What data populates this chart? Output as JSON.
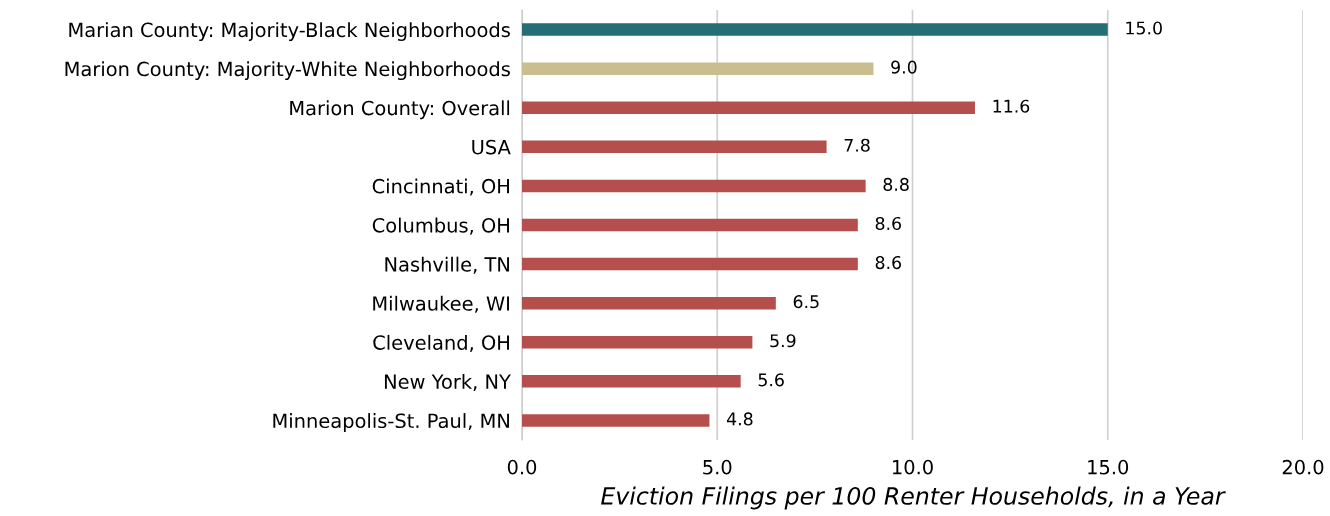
{
  "chart_data": {
    "type": "bar",
    "orientation": "horizontal",
    "xlabel": "Eviction Filings per 100 Renter Households, in a Year",
    "categories": [
      "Marian County: Majority-Black Neighborhoods",
      "Marion County: Majority-White Neighborhoods",
      "Marion County: Overall",
      "USA",
      "Cincinnati, OH",
      "Columbus, OH",
      "Nashville, TN",
      "Milwaukee, WI",
      "Cleveland, OH",
      "New York, NY",
      "Minneapolis-St. Paul, MN"
    ],
    "values": [
      15.0,
      9.0,
      11.6,
      7.8,
      8.8,
      8.6,
      8.6,
      6.5,
      5.9,
      5.6,
      4.8
    ],
    "value_labels": [
      "15.0",
      "9.0",
      "11.6",
      "7.8",
      "8.8",
      "8.6",
      "8.6",
      "6.5",
      "5.9",
      "5.6",
      "4.8"
    ],
    "colors": [
      "#246e74",
      "#c8be8e",
      "#b44f4e",
      "#b44f4e",
      "#b44f4e",
      "#b44f4e",
      "#b44f4e",
      "#b44f4e",
      "#b44f4e",
      "#b44f4e",
      "#b44f4e"
    ],
    "xlim": [
      0,
      20
    ],
    "xticks": [
      {
        "value": 0,
        "label": "0.0"
      },
      {
        "value": 5,
        "label": "5.0"
      },
      {
        "value": 10,
        "label": "10.0"
      },
      {
        "value": 15,
        "label": "15.0"
      },
      {
        "value": 20,
        "label": "20.0"
      }
    ],
    "grid": "x"
  }
}
